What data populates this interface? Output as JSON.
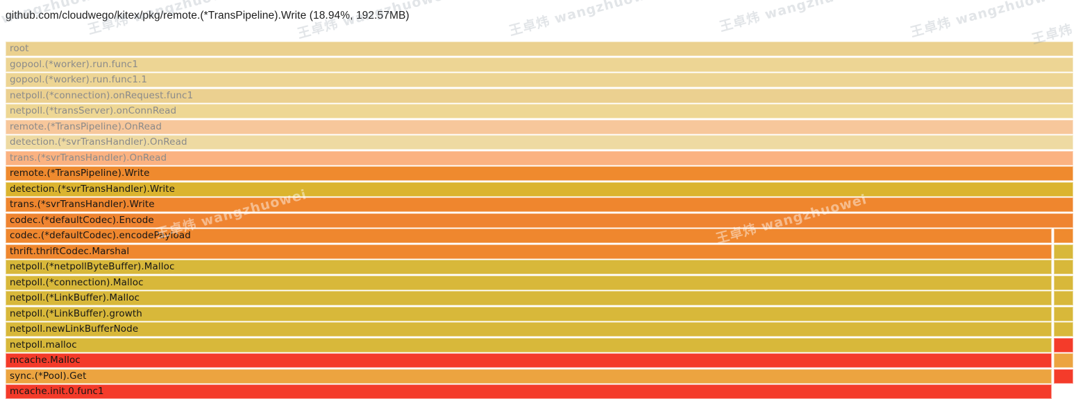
{
  "title": "github.com/cloudwego/kitex/pkg/remote.(*TransPipeline).Write (18.94%, 192.57MB)",
  "watermark_text": "王卓炜 wangzhuowei",
  "chart_data": {
    "type": "flamegraph",
    "title": "github.com/cloudwego/kitex/pkg/remote.(*TransPipeline).Write (18.94%, 192.57MB)",
    "selected": {
      "name": "github.com/cloudwego/kitex/pkg/remote.(*TransPipeline).Write",
      "percent": "18.94%",
      "size": "192.57MB"
    },
    "legend_position": "none",
    "orientation": "icicle-top-down",
    "rows": [
      {
        "label": "root",
        "color": "#ebd18f",
        "dim": true,
        "span": "full",
        "side": null
      },
      {
        "label": "gopool.(*worker).run.func1",
        "color": "#edd594",
        "dim": true,
        "span": "full",
        "side": null
      },
      {
        "label": "gopool.(*worker).run.func1.1",
        "color": "#edd594",
        "dim": true,
        "span": "full",
        "side": null
      },
      {
        "label": "netpoll.(*connection).onRequest.func1",
        "color": "#ebd090",
        "dim": true,
        "span": "full",
        "side": null
      },
      {
        "label": "netpoll.(*transServer).onConnRead",
        "color": "#eed794",
        "dim": true,
        "span": "full",
        "side": null
      },
      {
        "label": "remote.(*TransPipeline).OnRead",
        "color": "#f7c79b",
        "dim": true,
        "span": "full",
        "side": null
      },
      {
        "label": "detection.(*svrTransHandler).OnRead",
        "color": "#eedaa2",
        "dim": true,
        "span": "full",
        "side": null
      },
      {
        "label": "trans.(*svrTransHandler).OnRead",
        "color": "#fbb281",
        "dim": true,
        "span": "full",
        "side": null
      },
      {
        "label": "remote.(*TransPipeline).Write",
        "color": "#ef8a2e",
        "dim": false,
        "span": "full",
        "side": null
      },
      {
        "label": "detection.(*svrTransHandler).Write",
        "color": "#dbb42f",
        "dim": false,
        "span": "full",
        "side": null
      },
      {
        "label": "trans.(*svrTransHandler).Write",
        "color": "#ef862e",
        "dim": false,
        "span": "full",
        "side": null
      },
      {
        "label": "codec.(*defaultCodec).Encode",
        "color": "#ef8431",
        "dim": false,
        "span": "full",
        "side": null
      },
      {
        "label": "codec.(*defaultCodec).encodePayload",
        "color": "#ef872e",
        "dim": false,
        "span": "split",
        "side": "#ef8a2e"
      },
      {
        "label": "thrift.thriftCodec.Marshal",
        "color": "#ef872e",
        "dim": false,
        "span": "split",
        "side": "#d8b83a"
      },
      {
        "label": "netpoll.(*netpollByteBuffer).Malloc",
        "color": "#d8b83a",
        "dim": false,
        "span": "split",
        "side": "#d8b83a"
      },
      {
        "label": "netpoll.(*connection).Malloc",
        "color": "#d8b83a",
        "dim": false,
        "span": "split",
        "side": "#d8b83a"
      },
      {
        "label": "netpoll.(*LinkBuffer).Malloc",
        "color": "#d8b83a",
        "dim": false,
        "span": "split",
        "side": "#d8b83a"
      },
      {
        "label": "netpoll.(*LinkBuffer).growth",
        "color": "#d8b83a",
        "dim": false,
        "span": "split",
        "side": "#d8b83a"
      },
      {
        "label": "netpoll.newLinkBufferNode",
        "color": "#d8b83a",
        "dim": false,
        "span": "split",
        "side": "#d8b83a"
      },
      {
        "label": "netpoll.malloc",
        "color": "#d8b83a",
        "dim": false,
        "span": "split",
        "side": "#f43b2a"
      },
      {
        "label": "mcache.Malloc",
        "color": "#f43b2a",
        "dim": false,
        "span": "split",
        "side": "#eca440"
      },
      {
        "label": "sync.(*Pool).Get",
        "color": "#eca440",
        "dim": false,
        "span": "split",
        "side": "#f43b2a"
      },
      {
        "label": "mcache.init.0.func1",
        "color": "#f43b2a",
        "dim": false,
        "span": "split",
        "side": null
      }
    ],
    "text_colors": {
      "dimmed": "#8a8a8a",
      "normal": "#151515"
    }
  }
}
